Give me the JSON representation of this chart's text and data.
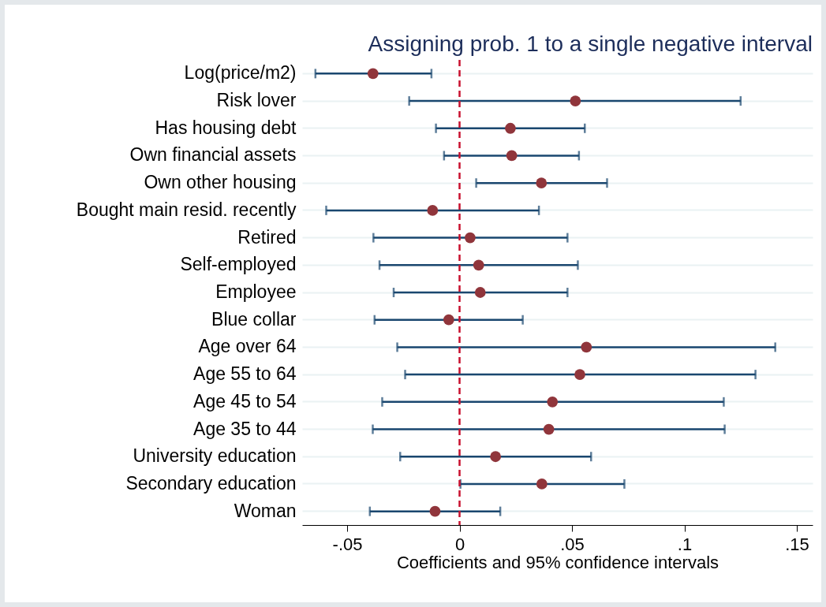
{
  "chart_data": {
    "type": "scatter",
    "orientation": "horizontal",
    "title": "Assigning prob. 1 to a single negative interval",
    "xlabel": "Coefficients and 95% confidence intervals",
    "categories": [
      "Log(price/m2)",
      "Risk lover",
      "Has housing debt",
      "Own financial assets",
      "Own other housing",
      "Bought main resid. recently",
      "Retired",
      "Self-employed",
      "Employee",
      "Blue collar",
      "Age over 64",
      "Age 55 to 64",
      "Age 45 to 54",
      "Age 35 to 44",
      "University education",
      "Secondary education",
      "Woman"
    ],
    "series": [
      {
        "color": "#90353b",
        "values": [
          -0.0385,
          0.0515,
          0.0226,
          0.0232,
          0.0364,
          -0.012,
          0.0047,
          0.0085,
          0.0092,
          -0.0048,
          0.0564,
          0.0535,
          0.0413,
          0.0397,
          0.016,
          0.0366,
          -0.0109
        ],
        "errors": [
          [
            -0.0641,
            -0.0125
          ],
          [
            -0.0224,
            0.125
          ],
          [
            -0.0105,
            0.0557
          ],
          [
            -0.0069,
            0.0531
          ],
          [
            0.0074,
            0.0656
          ],
          [
            -0.0593,
            0.0353
          ],
          [
            -0.0383,
            0.048
          ],
          [
            -0.0356,
            0.0526
          ],
          [
            -0.0293,
            0.048
          ],
          [
            -0.0378,
            0.0281
          ],
          [
            -0.0277,
            0.1404
          ],
          [
            -0.0242,
            0.1316
          ],
          [
            -0.0344,
            0.1175
          ],
          [
            -0.0386,
            0.1179
          ],
          [
            -0.0264,
            0.0585
          ],
          [
            0.0004,
            0.0733
          ],
          [
            -0.0399,
            0.0181
          ]
        ]
      }
    ],
    "xlim": [
      -0.07,
      0.157
    ],
    "xticks": [
      {
        "value": -0.05,
        "label": "-.05"
      },
      0,
      {
        "value": 0.05,
        "label": ".05"
      },
      {
        "value": 0.1,
        "label": ".1"
      },
      {
        "value": 0.15,
        "label": ".15"
      }
    ],
    "ref_lines": [
      {
        "axis": "x",
        "value": 0,
        "color": "#c8102e",
        "line_style": "dashed"
      }
    ],
    "grid": "y",
    "marker": "circle"
  }
}
